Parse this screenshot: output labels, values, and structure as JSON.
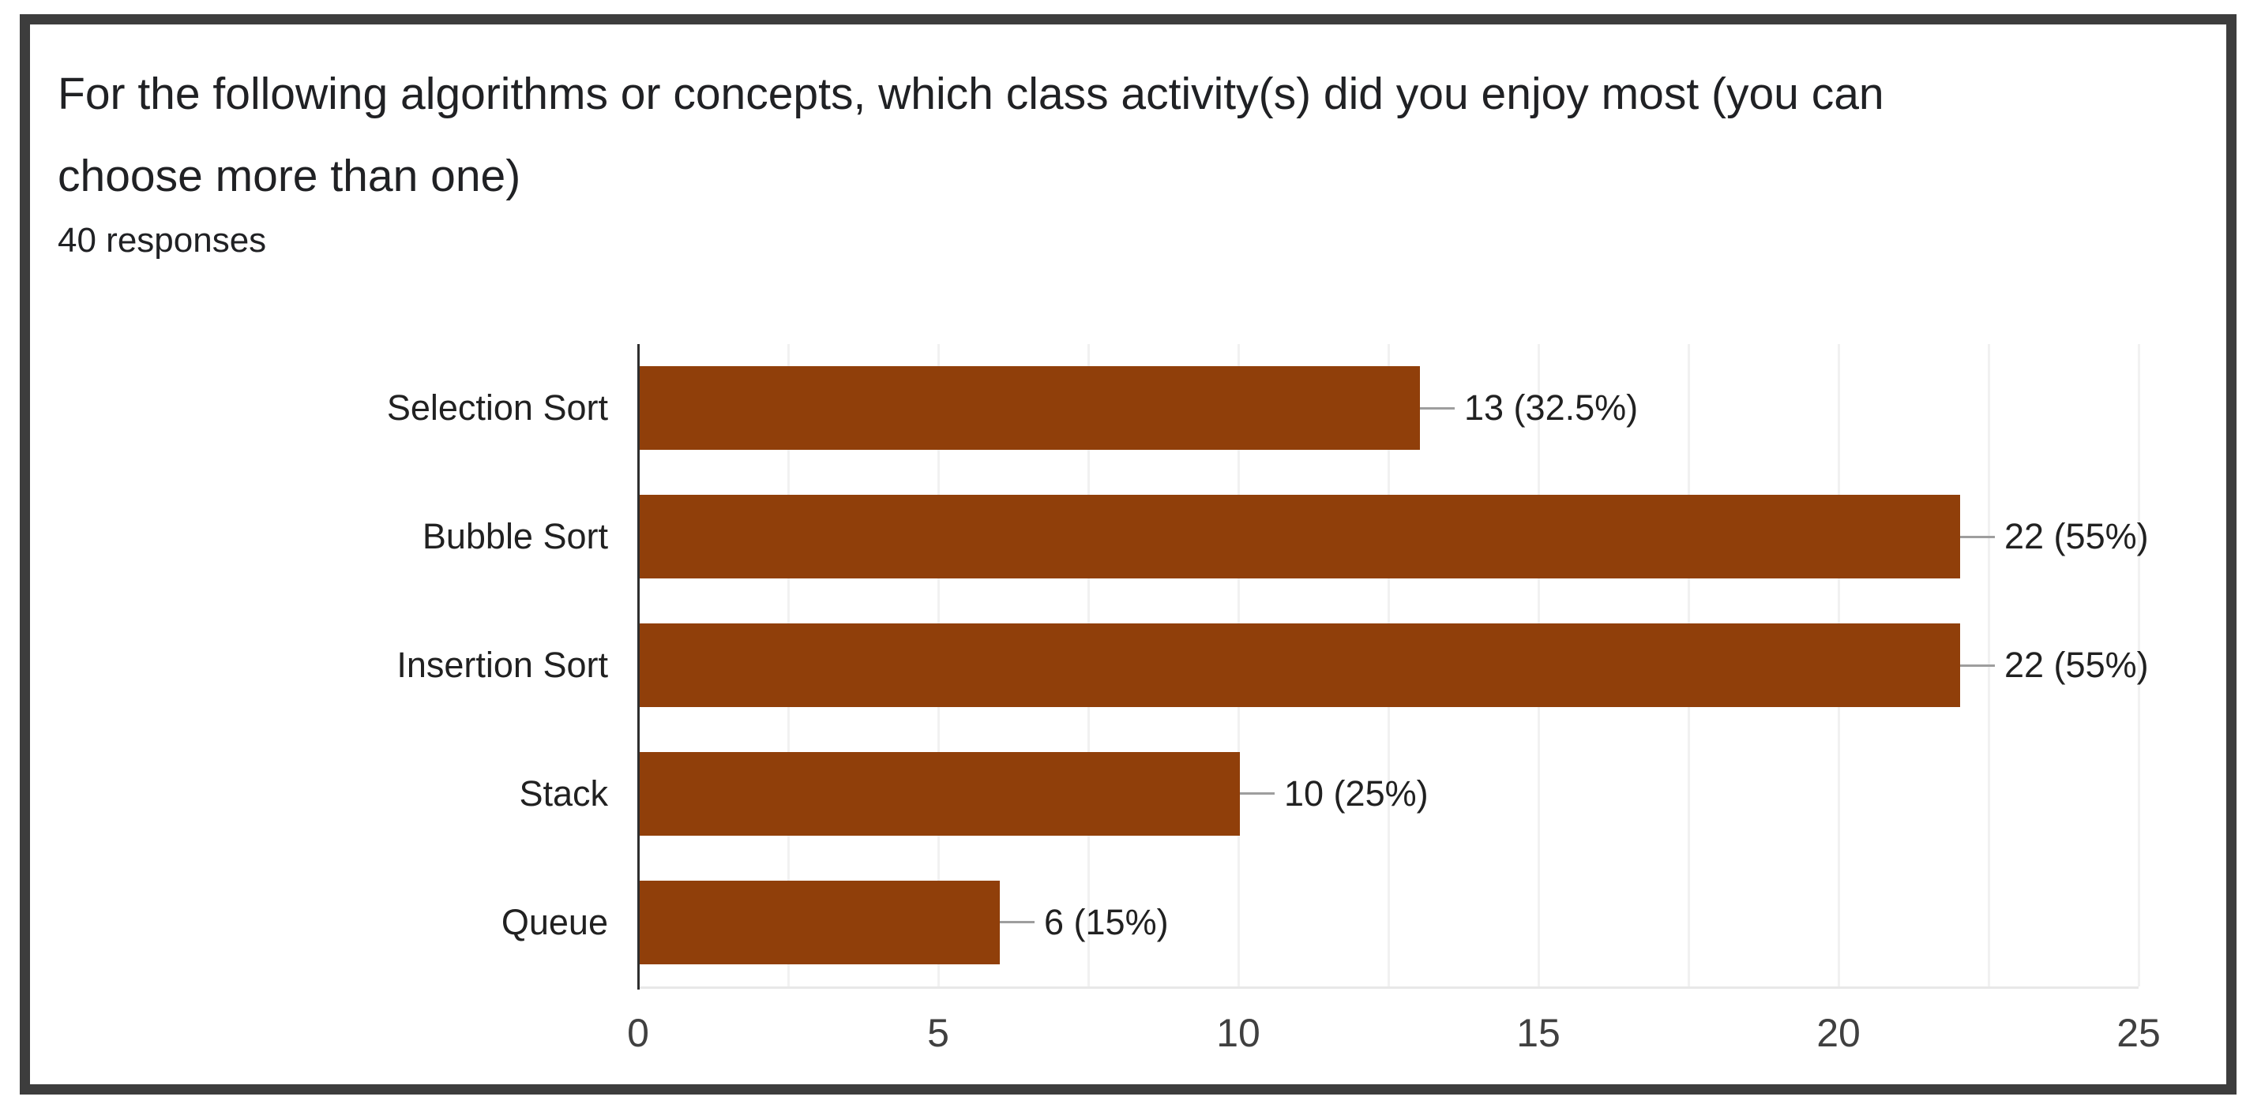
{
  "header": {
    "title_lines": [
      "For the following algorithms or concepts, which class activity(s) did you enjoy most (you can",
      "choose more than one)"
    ],
    "responses": "40 responses"
  },
  "chart_data": {
    "type": "bar",
    "orientation": "horizontal",
    "title": "For the following algorithms or concepts, which class activity(s) did you enjoy most (you can choose more than one)",
    "subtitle": "40 responses",
    "categories": [
      "Selection Sort",
      "Bubble Sort",
      "Insertion Sort",
      "Stack",
      "Queue"
    ],
    "values": [
      13,
      22,
      22,
      10,
      6
    ],
    "value_labels": [
      "13 (32.5%)",
      "22 (55%)",
      "22 (55%)",
      "10 (25%)",
      "6 (15%)"
    ],
    "xlim": [
      0,
      25
    ],
    "x_ticks": [
      0,
      5,
      10,
      15,
      20,
      25
    ],
    "minor_grid_step": 2.5,
    "grid": true,
    "legend": "none",
    "colors": {
      "bar": "#903F0A",
      "gridline": "#F1F1F1",
      "baseline": "#E8E8E8",
      "axis": "#2E2E2E",
      "connector": "#9E9E9E",
      "label_text": "#212121",
      "tick_text": "#404040",
      "title_text": "#202124",
      "frame_border": "#3D3D3D"
    }
  }
}
